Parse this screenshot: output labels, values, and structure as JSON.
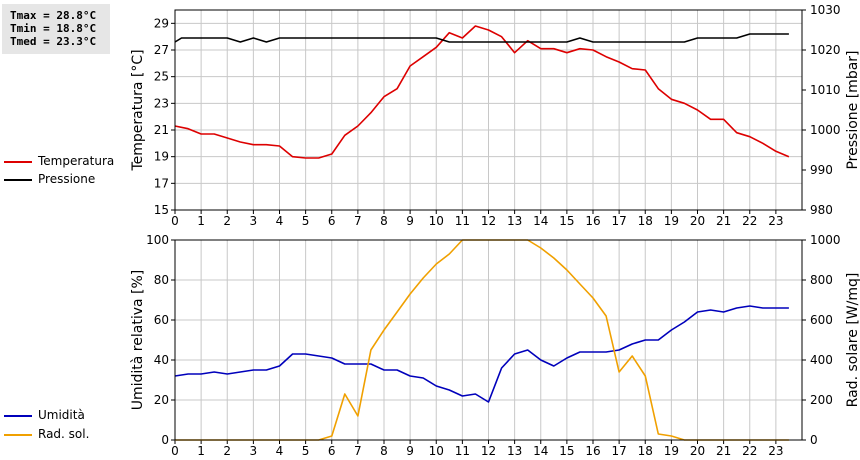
{
  "stats": {
    "tmax": "Tmax = 28.8°C",
    "tmin": "Tmin = 18.8°C",
    "tmed": "Tmed = 23.3°C"
  },
  "colors": {
    "temperature": "#dd0000",
    "pressure": "#000000",
    "humidity": "#0000bb",
    "radiation": "#f0a000",
    "grid": "#c8c8c8"
  },
  "chart_data": [
    {
      "type": "line",
      "x_ticks": [
        "0",
        "1",
        "2",
        "3",
        "4",
        "5",
        "6",
        "7",
        "8",
        "9",
        "10",
        "11",
        "12",
        "13",
        "14",
        "15",
        "16",
        "17",
        "18",
        "19",
        "20",
        "21",
        "22",
        "23"
      ],
      "xlim": [
        0,
        24
      ],
      "ylabel": "Temperatura [°C]",
      "ylim": [
        15,
        30
      ],
      "y_ticks": [
        "15",
        "17",
        "19",
        "21",
        "23",
        "25",
        "27",
        "29"
      ],
      "y2label": "Pressione [mbar]",
      "y2lim": [
        980,
        1030
      ],
      "y2_ticks": [
        "980",
        "990",
        "1000",
        "1010",
        "1020",
        "1030"
      ],
      "grid": true,
      "legend_placement": "left",
      "series": [
        {
          "name": "Temperatura",
          "axis": "left",
          "x": [
            0,
            0.5,
            1,
            1.5,
            2,
            2.5,
            3,
            3.5,
            4,
            4.5,
            5,
            5.5,
            6,
            6.5,
            7,
            7.5,
            8,
            8.5,
            9,
            9.5,
            10,
            10.5,
            11,
            11.5,
            12,
            12.5,
            13,
            13.5,
            14,
            14.5,
            15,
            15.5,
            16,
            16.5,
            17,
            17.5,
            18,
            18.5,
            19,
            19.5,
            20,
            20.5,
            21,
            21.5,
            22,
            22.5,
            23,
            23.5
          ],
          "y": [
            21.3,
            21.1,
            20.7,
            20.7,
            20.4,
            20.1,
            19.9,
            19.9,
            19.8,
            19,
            18.9,
            18.9,
            19.2,
            20.6,
            21.3,
            22.3,
            23.5,
            24.1,
            25.8,
            26.5,
            27.2,
            28.3,
            27.9,
            28.8,
            28.5,
            28.0,
            26.8,
            27.7,
            27.1,
            27.1,
            26.8,
            27.1,
            27.0,
            26.5,
            26.1,
            25.6,
            25.5,
            24.1,
            23.3,
            23.0,
            22.5,
            21.8,
            21.8,
            20.8,
            20.5,
            20.0,
            19.4,
            19.0
          ]
        },
        {
          "name": "Pressione",
          "axis": "right",
          "x": [
            0,
            0.25,
            0.5,
            1,
            1.5,
            2,
            2.5,
            3,
            3.5,
            4,
            4.5,
            5,
            5.5,
            6,
            6.5,
            7,
            7.5,
            8,
            8.5,
            9,
            9.5,
            10,
            10.5,
            11,
            11.5,
            12,
            12.5,
            13,
            13.5,
            14,
            14.5,
            15,
            15.5,
            16,
            16.5,
            17,
            17.5,
            18,
            18.5,
            19,
            19.5,
            20,
            20.5,
            21,
            21.5,
            22,
            22.5,
            23,
            23.5
          ],
          "y": [
            1022,
            1023,
            1023,
            1023,
            1023,
            1023,
            1022,
            1023,
            1022,
            1023,
            1023,
            1023,
            1023,
            1023,
            1023,
            1023,
            1023,
            1023,
            1023,
            1023,
            1023,
            1023,
            1022,
            1022,
            1022,
            1022,
            1022,
            1022,
            1022,
            1022,
            1022,
            1022,
            1023,
            1022,
            1022,
            1022,
            1022,
            1022,
            1022,
            1022,
            1022,
            1023,
            1023,
            1023,
            1023,
            1024,
            1024,
            1024,
            1024
          ]
        }
      ]
    },
    {
      "type": "line",
      "x_ticks": [
        "0",
        "1",
        "2",
        "3",
        "4",
        "5",
        "6",
        "7",
        "8",
        "9",
        "10",
        "11",
        "12",
        "13",
        "14",
        "15",
        "16",
        "17",
        "18",
        "19",
        "20",
        "21",
        "22",
        "23"
      ],
      "xlim": [
        0,
        24
      ],
      "ylabel": "Umidità relativa [%]",
      "ylim": [
        0,
        100
      ],
      "y_ticks": [
        "0",
        "20",
        "40",
        "60",
        "80",
        "100"
      ],
      "y2label": "Rad. solare [W/mq]",
      "y2lim": [
        0,
        1000
      ],
      "y2_ticks": [
        "0",
        "200",
        "400",
        "600",
        "800",
        "1000"
      ],
      "grid": true,
      "legend_placement": "left",
      "series": [
        {
          "name": "Umidità",
          "axis": "left",
          "x": [
            0,
            0.5,
            1,
            1.5,
            2,
            2.5,
            3,
            3.5,
            4,
            4.5,
            5,
            5.5,
            6,
            6.5,
            7,
            7.5,
            8,
            8.5,
            9,
            9.5,
            10,
            10.5,
            11,
            11.5,
            12,
            12.5,
            13,
            13.5,
            14,
            14.5,
            15,
            15.5,
            16,
            16.5,
            17,
            17.5,
            18,
            18.5,
            19,
            19.5,
            20,
            20.5,
            21,
            21.5,
            22,
            22.5,
            23,
            23.5
          ],
          "y": [
            32,
            33,
            33,
            34,
            33,
            34,
            35,
            35,
            37,
            43,
            43,
            42,
            41,
            38,
            38,
            38,
            35,
            35,
            32,
            31,
            27,
            25,
            22,
            23,
            19,
            36,
            43,
            45,
            40,
            37,
            41,
            44,
            44,
            44,
            45,
            48,
            50,
            50,
            55,
            59,
            64,
            65,
            64,
            66,
            67,
            66,
            66,
            66
          ]
        },
        {
          "name": "Rad. sol.",
          "axis": "right",
          "x": [
            0,
            1,
            2,
            3,
            4,
            5,
            5.5,
            6,
            6.5,
            7,
            7.5,
            8,
            8.5,
            9,
            9.5,
            10,
            10.5,
            11,
            11.5,
            12,
            12.5,
            13,
            13.5,
            14,
            14.5,
            15,
            15.5,
            16,
            16.5,
            17,
            17.5,
            18,
            18.5,
            19,
            19.5,
            20,
            21,
            22,
            23,
            23.5
          ],
          "y": [
            0,
            0,
            0,
            0,
            0,
            0,
            0,
            20,
            230,
            120,
            450,
            550,
            640,
            730,
            810,
            880,
            930,
            1000,
            1000,
            1000,
            1000,
            1000,
            1000,
            960,
            910,
            850,
            780,
            710,
            620,
            340,
            420,
            320,
            30,
            20,
            0,
            0,
            0,
            0,
            0,
            0
          ]
        }
      ]
    }
  ]
}
